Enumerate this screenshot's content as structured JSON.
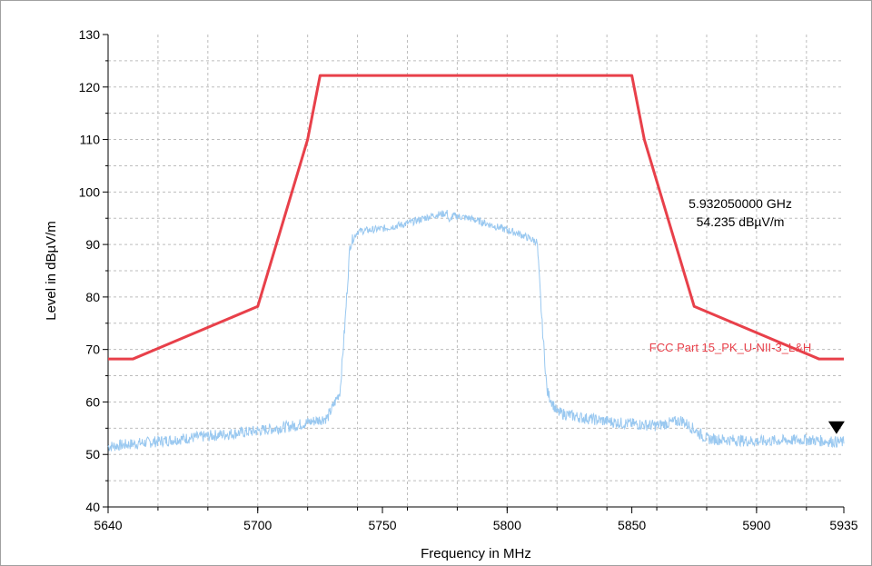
{
  "chart_data": {
    "type": "line",
    "title": "",
    "xlabel": "Frequency in MHz",
    "ylabel": "Level in dBµV/m",
    "xlim": [
      5640,
      5935
    ],
    "ylim": [
      40,
      130
    ],
    "x_ticks": [
      5640,
      5700,
      5750,
      5800,
      5850,
      5900,
      5935
    ],
    "x_tick_labels": [
      "5640",
      "5700",
      "5750",
      "5800",
      "5850",
      "5900",
      "5935"
    ],
    "y_ticks": [
      40,
      50,
      60,
      70,
      80,
      90,
      100,
      110,
      120,
      130
    ],
    "y_tick_labels": [
      "40",
      "50",
      "60",
      "70",
      "80",
      "90",
      "100",
      "110",
      "120",
      "130"
    ],
    "grid": true,
    "series": [
      {
        "name": "FCC Part 15_PK_U-NII-3_L&H",
        "color": "#e8404a",
        "x": [
          5640,
          5650,
          5700,
          5720,
          5725,
          5850,
          5855,
          5875,
          5925,
          5935
        ],
        "y": [
          68.2,
          68.2,
          78.2,
          110,
          122.2,
          122.2,
          110,
          78.2,
          68.2,
          68.2
        ]
      },
      {
        "name": "",
        "color": "#99c8f0",
        "x": [
          5640,
          5660,
          5680,
          5700,
          5715,
          5728,
          5733,
          5735,
          5737,
          5740,
          5750,
          5760,
          5770,
          5776,
          5777,
          5778,
          5785,
          5795,
          5805,
          5812,
          5814,
          5816,
          5820,
          5830,
          5845,
          5860,
          5870,
          5880,
          5900,
          5920,
          5935
        ],
        "y": [
          51.5,
          52.5,
          53.5,
          54.5,
          55.5,
          57,
          62,
          75,
          90,
          92.5,
          93,
          94,
          95.5,
          96,
          94,
          95.5,
          95,
          93.5,
          92,
          90.5,
          75,
          62,
          58,
          57,
          56,
          55.5,
          56.5,
          53,
          52.5,
          52.8,
          52.3
        ]
      }
    ],
    "marker": {
      "x": 5932.05,
      "y": 54.235,
      "label_freq": "5.932050000 GHz",
      "label_level": "54.235 dBµV/m"
    }
  }
}
